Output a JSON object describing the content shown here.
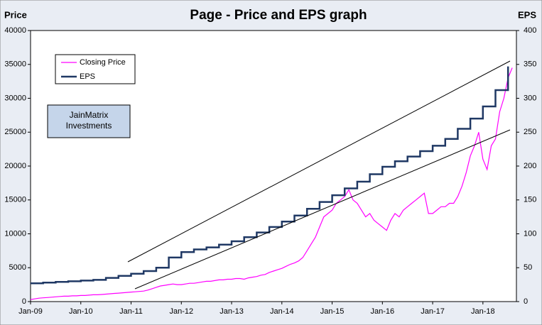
{
  "chart_data": {
    "type": "line",
    "title": "Page - Price and EPS graph",
    "y_label": "Price",
    "y2_label": "EPS",
    "annotation": "JainMatrix Investments",
    "xlim": [
      "Jan-09",
      "Sep-18"
    ],
    "xticks": [
      "Jan-09",
      "Jan-10",
      "Jan-11",
      "Jan-12",
      "Jan-13",
      "Jan-14",
      "Jan-15",
      "Jan-16",
      "Jan-17",
      "Jan-18"
    ],
    "ylim": [
      0,
      40000
    ],
    "yticks": [
      0,
      5000,
      10000,
      15000,
      20000,
      25000,
      30000,
      35000,
      40000
    ],
    "y2lim": [
      0,
      400
    ],
    "y2ticks": [
      0,
      50,
      100,
      150,
      200,
      250,
      300,
      350,
      400
    ],
    "legend": "upper left",
    "series": [
      {
        "name": "Closing Price",
        "color": "#ff00ff",
        "x": [
          "Jan-09",
          "Feb-09",
          "Mar-09",
          "Apr-09",
          "May-09",
          "Jun-09",
          "Jul-09",
          "Aug-09",
          "Sep-09",
          "Oct-09",
          "Nov-09",
          "Dec-09",
          "Jan-10",
          "Feb-10",
          "Mar-10",
          "Apr-10",
          "May-10",
          "Jun-10",
          "Jul-10",
          "Aug-10",
          "Sep-10",
          "Oct-10",
          "Nov-10",
          "Dec-10",
          "Jan-11",
          "Feb-11",
          "Mar-11",
          "Apr-11",
          "May-11",
          "Jun-11",
          "Jul-11",
          "Aug-11",
          "Sep-11",
          "Oct-11",
          "Nov-11",
          "Dec-11",
          "Jan-12",
          "Feb-12",
          "Mar-12",
          "Apr-12",
          "May-12",
          "Jun-12",
          "Jul-12",
          "Aug-12",
          "Sep-12",
          "Oct-12",
          "Nov-12",
          "Dec-12",
          "Jan-13",
          "Feb-13",
          "Mar-13",
          "Apr-13",
          "May-13",
          "Jun-13",
          "Jul-13",
          "Aug-13",
          "Sep-13",
          "Oct-13",
          "Nov-13",
          "Dec-13",
          "Jan-14",
          "Feb-14",
          "Mar-14",
          "Apr-14",
          "May-14",
          "Jun-14",
          "Jul-14",
          "Aug-14",
          "Sep-14",
          "Oct-14",
          "Nov-14",
          "Dec-14",
          "Jan-15",
          "Feb-15",
          "Mar-15",
          "Apr-15",
          "May-15",
          "Jun-15",
          "Jul-15",
          "Aug-15",
          "Sep-15",
          "Oct-15",
          "Nov-15",
          "Dec-15",
          "Jan-16",
          "Feb-16",
          "Mar-16",
          "Apr-16",
          "May-16",
          "Jun-16",
          "Jul-16",
          "Aug-16",
          "Sep-16",
          "Oct-16",
          "Nov-16",
          "Dec-16",
          "Jan-17",
          "Feb-17",
          "Mar-17",
          "Apr-17",
          "May-17",
          "Jun-17",
          "Jul-17",
          "Aug-17",
          "Sep-17",
          "Oct-17",
          "Nov-17",
          "Dec-17",
          "Jan-18",
          "Feb-18",
          "Mar-18",
          "Apr-18",
          "May-18",
          "Jun-18",
          "Jul-18",
          "Aug-18"
        ],
        "values": [
          300,
          400,
          500,
          550,
          600,
          650,
          700,
          750,
          800,
          800,
          850,
          850,
          900,
          900,
          950,
          1000,
          1000,
          1050,
          1100,
          1150,
          1200,
          1250,
          1300,
          1350,
          1400,
          1450,
          1500,
          1550,
          1700,
          1900,
          2100,
          2300,
          2400,
          2500,
          2600,
          2500,
          2500,
          2600,
          2700,
          2700,
          2800,
          2900,
          3000,
          3000,
          3100,
          3200,
          3200,
          3300,
          3300,
          3400,
          3400,
          3300,
          3500,
          3600,
          3700,
          3900,
          4000,
          4300,
          4500,
          4700,
          4900,
          5200,
          5500,
          5700,
          6000,
          6500,
          7500,
          8500,
          9500,
          11000,
          12500,
          13000,
          13500,
          14500,
          15000,
          15500,
          16500,
          15000,
          14500,
          13500,
          12500,
          13000,
          12000,
          11500,
          11000,
          10500,
          12000,
          13000,
          12500,
          13500,
          14000,
          14500,
          15000,
          15500,
          16000,
          13000,
          13000,
          13500,
          14000,
          14000,
          14500,
          14500,
          15500,
          17000,
          19000,
          21500,
          23000,
          25000,
          21000,
          19500,
          23000,
          24000,
          28000,
          30000,
          33000,
          34500
        ]
      },
      {
        "name": "EPS",
        "color": "#1f3864",
        "axis": "y2",
        "step": true,
        "x": [
          "Jan-09",
          "Apr-09",
          "Jul-09",
          "Oct-09",
          "Jan-10",
          "Apr-10",
          "Jul-10",
          "Oct-10",
          "Jan-11",
          "Apr-11",
          "Jul-11",
          "Oct-11",
          "Jan-12",
          "Apr-12",
          "Jul-12",
          "Oct-12",
          "Jan-13",
          "Apr-13",
          "Jul-13",
          "Oct-13",
          "Jan-14",
          "Apr-14",
          "Jul-14",
          "Oct-14",
          "Jan-15",
          "Apr-15",
          "Jul-15",
          "Oct-15",
          "Jan-16",
          "Apr-16",
          "Jul-16",
          "Oct-16",
          "Jan-17",
          "Apr-17",
          "Jul-17",
          "Oct-17",
          "Jan-18",
          "Apr-18",
          "Jul-18"
        ],
        "values": [
          27,
          28,
          29,
          30,
          31,
          32,
          35,
          38,
          41,
          45,
          50,
          65,
          73,
          77,
          80,
          84,
          89,
          95,
          102,
          110,
          118,
          127,
          137,
          147,
          157,
          167,
          177,
          188,
          199,
          207,
          214,
          222,
          230,
          240,
          255,
          270,
          288,
          312,
          347
        ]
      }
    ]
  }
}
